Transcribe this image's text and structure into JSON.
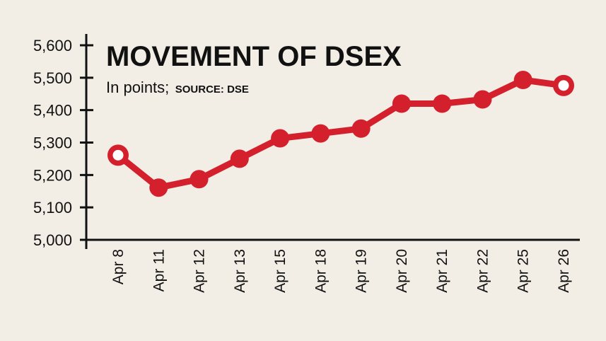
{
  "chart_data": {
    "type": "line",
    "title": "MOVEMENT OF DSEX",
    "subtitle": "In points;",
    "source": "SOURCE: DSE",
    "xlabel": "",
    "ylabel": "In points",
    "categories": [
      "Apr 8",
      "Apr 11",
      "Apr 12",
      "Apr 13",
      "Apr 15",
      "Apr 18",
      "Apr 19",
      "Apr 20",
      "Apr 21",
      "Apr 22",
      "Apr 25",
      "Apr 26"
    ],
    "series": [
      {
        "name": "DSEX",
        "values": [
          5261,
          5161,
          5187,
          5250,
          5313,
          5328,
          5343,
          5420,
          5420,
          5433,
          5493,
          5476
        ],
        "color": "#d4202c"
      }
    ],
    "yticks": [
      5000,
      5100,
      5200,
      5300,
      5400,
      5500,
      5600
    ],
    "ytick_labels": [
      "5,000",
      "5,100",
      "5,200",
      "5,300",
      "5,400",
      "5,500",
      "5,600"
    ],
    "ylim": [
      5000,
      5600
    ],
    "grid": false,
    "legend": "none",
    "hollow_markers": [
      "Apr 8",
      "Apr 26"
    ]
  },
  "colors": {
    "background": "#f2eee6",
    "line": "#d4202c",
    "axis": "#111111",
    "marker_hole": "#ffffff"
  }
}
